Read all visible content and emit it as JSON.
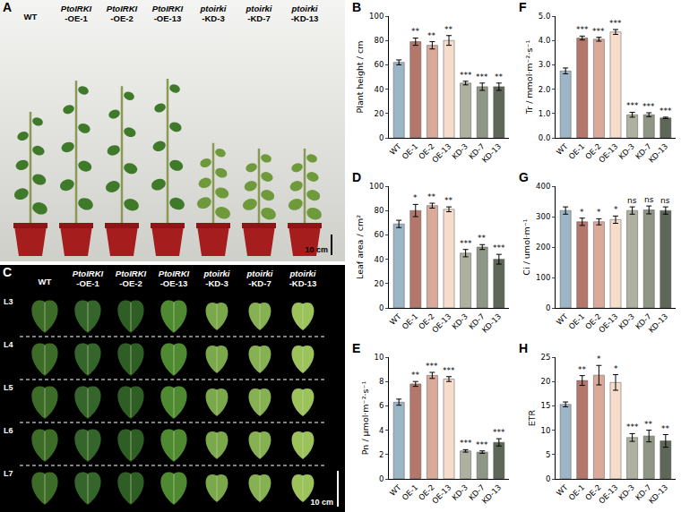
{
  "photo_panels": [
    {
      "panel": "A",
      "labels": [
        "WT",
        "PtoIRKI-OE-1",
        "PtoIRKI-OE-2",
        "PtoIRKI-OE-13",
        "ptoirki-KD-3",
        "ptoirki-KD-7",
        "ptoirki-KD-13"
      ],
      "scale_bar": "10 cm"
    },
    {
      "panel": "C",
      "labels": [
        "WT",
        "PtoIRKI-OE-1",
        "PtoIRKI-OE-2",
        "PtoIRKI-OE-13",
        "ptoirki-KD-3",
        "ptoirki-KD-7",
        "ptoirki-KD-13"
      ],
      "rows": [
        "L3",
        "L4",
        "L5",
        "L6",
        "L7"
      ],
      "scale_bar": "10 cm"
    }
  ],
  "chart_data": [
    {
      "panel": "B",
      "type": "bar",
      "y_label": "Plant height / cm",
      "categories": [
        "WT",
        "OE-1",
        "OE-2",
        "OE-13",
        "KD-3",
        "KD-7",
        "KD-13"
      ],
      "values": [
        62,
        79,
        76,
        80,
        45,
        42,
        42
      ],
      "errors": [
        2,
        3,
        3,
        4,
        1.5,
        3,
        3
      ],
      "sig_labels": [
        null,
        "**",
        "**",
        "**",
        "***",
        "***",
        "**"
      ],
      "colors": [
        "#9db6c7",
        "#b3786b",
        "#d9aa9a",
        "#f6ddcb",
        "#aeb19f",
        "#8f9685",
        "#5f6758"
      ],
      "ylim": [
        0,
        100
      ],
      "yticks": [
        0,
        20,
        40,
        60,
        80,
        100
      ]
    },
    {
      "panel": "F",
      "type": "bar",
      "y_label": "Tr / mmol·m⁻²·s⁻¹",
      "categories": [
        "WT",
        "OE-1",
        "OE-2",
        "OE-13",
        "KD-3",
        "KD-7",
        "KD-13"
      ],
      "values": [
        2.75,
        4.1,
        4.05,
        4.35,
        0.95,
        0.95,
        0.82
      ],
      "errors": [
        0.12,
        0.08,
        0.08,
        0.1,
        0.1,
        0.08,
        0.03
      ],
      "sig_labels": [
        null,
        "***",
        "***",
        "***",
        "***",
        "***",
        "***"
      ],
      "colors": [
        "#9db6c7",
        "#b3786b",
        "#d9aa9a",
        "#f6ddcb",
        "#aeb19f",
        "#8f9685",
        "#5f6758"
      ],
      "ylim": [
        0,
        5
      ],
      "yticks": [
        {
          "value": 0,
          "label": "0.0"
        },
        {
          "value": 1,
          "label": "1.0"
        },
        {
          "value": 2,
          "label": "2.0"
        },
        {
          "value": 3,
          "label": "3.0"
        },
        {
          "value": 4,
          "label": "4.0"
        },
        {
          "value": 5,
          "label": "5.0"
        }
      ]
    },
    {
      "panel": "D",
      "type": "bar",
      "y_label": "Leaf area / cm²",
      "categories": [
        "WT",
        "OE-1",
        "OE-2",
        "OE-13",
        "KD-3",
        "KD-7",
        "KD-13"
      ],
      "values": [
        69,
        80,
        84,
        81,
        45,
        50,
        40
      ],
      "errors": [
        3,
        5,
        2,
        2,
        3,
        2,
        4
      ],
      "sig_labels": [
        null,
        "*",
        "**",
        "**",
        "***",
        "**",
        "***"
      ],
      "colors": [
        "#9db6c7",
        "#b3786b",
        "#d9aa9a",
        "#f6ddcb",
        "#aeb19f",
        "#8f9685",
        "#5f6758"
      ],
      "ylim": [
        0,
        100
      ],
      "yticks": [
        0,
        20,
        40,
        60,
        80,
        100
      ]
    },
    {
      "panel": "G",
      "type": "bar",
      "y_label": "Ci / umol·m⁻¹",
      "categories": [
        "WT",
        "OE-1",
        "OE-2",
        "OE-13",
        "KD-3",
        "KD-7",
        "KD-13"
      ],
      "values": [
        320,
        283,
        283,
        290,
        320,
        322,
        320
      ],
      "errors": [
        12,
        12,
        10,
        12,
        12,
        13,
        12
      ],
      "sig_labels": [
        null,
        "*",
        "*",
        "*",
        "ns",
        "ns",
        "ns"
      ],
      "colors": [
        "#9db6c7",
        "#b3786b",
        "#d9aa9a",
        "#f6ddcb",
        "#aeb19f",
        "#8f9685",
        "#5f6758"
      ],
      "ylim": [
        0,
        400
      ],
      "yticks": [
        0,
        100,
        200,
        300,
        400
      ]
    },
    {
      "panel": "E",
      "type": "bar",
      "y_label": "Pn / μmol·m⁻²·s⁻¹",
      "categories": [
        "WT",
        "OE-1",
        "OE-2",
        "OE-13",
        "KD-3",
        "KD-7",
        "KD-13"
      ],
      "values": [
        6.3,
        7.8,
        8.5,
        8.2,
        2.3,
        2.2,
        3.0
      ],
      "errors": [
        0.25,
        0.2,
        0.25,
        0.2,
        0.1,
        0.1,
        0.3
      ],
      "sig_labels": [
        null,
        "**",
        "***",
        "***",
        "***",
        "***",
        "***"
      ],
      "colors": [
        "#9db6c7",
        "#b3786b",
        "#d9aa9a",
        "#f6ddcb",
        "#aeb19f",
        "#8f9685",
        "#5f6758"
      ],
      "ylim": [
        0,
        10
      ],
      "yticks": [
        0,
        2,
        4,
        6,
        8,
        10
      ]
    },
    {
      "panel": "H",
      "type": "bar",
      "y_label": "ETR",
      "categories": [
        "WT",
        "OE-1",
        "OE-2",
        "OE-13",
        "KD-3",
        "KD-7",
        "KD-13"
      ],
      "values": [
        15.3,
        20.2,
        21.3,
        19.8,
        8.5,
        8.8,
        7.8
      ],
      "errors": [
        0.5,
        1,
        2,
        1.6,
        0.8,
        1.2,
        1.3
      ],
      "sig_labels": [
        null,
        "**",
        "*",
        "*",
        "***",
        "**",
        "**"
      ],
      "colors": [
        "#9db6c7",
        "#b3786b",
        "#d9aa9a",
        "#f6ddcb",
        "#aeb19f",
        "#8f9685",
        "#5f6758"
      ],
      "ylim": [
        0,
        25
      ],
      "yticks": [
        0,
        5,
        10,
        15,
        20,
        25
      ]
    }
  ]
}
